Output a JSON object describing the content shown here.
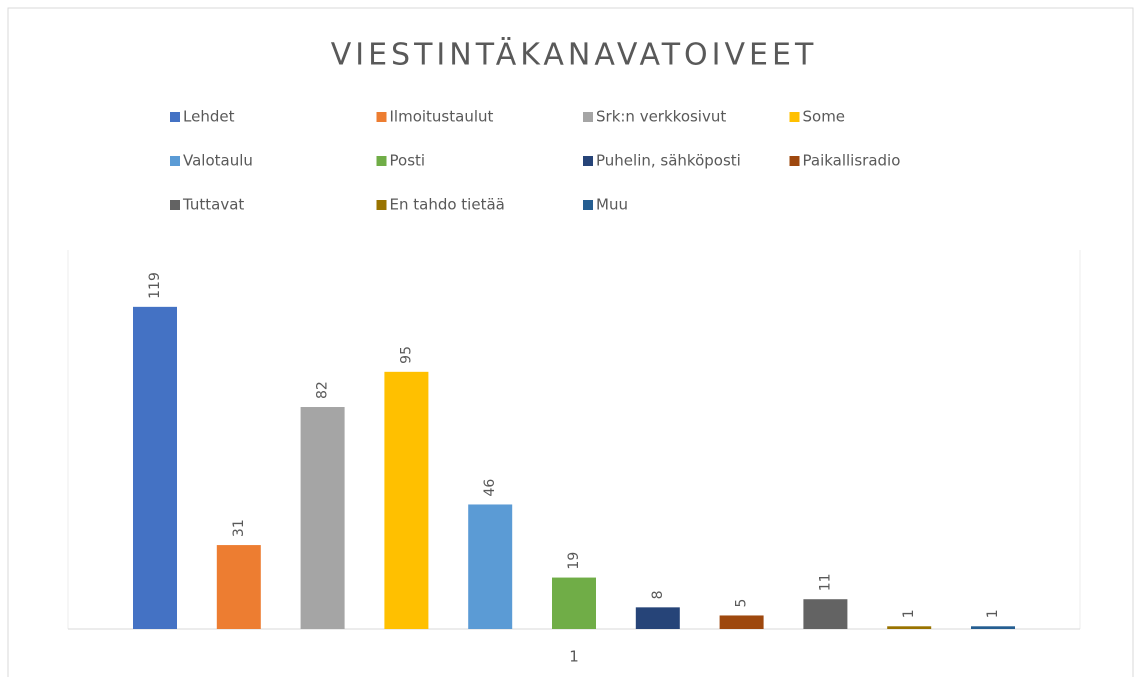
{
  "chart_data": {
    "type": "bar",
    "title": "VIESTINTÄKANAVATOIVEET",
    "categories": [
      "1"
    ],
    "series": [
      {
        "name": "Lehdet",
        "color": "#4472c4",
        "values": [
          119
        ]
      },
      {
        "name": "Ilmoitustaulut",
        "color": "#ed7d31",
        "values": [
          31
        ]
      },
      {
        "name": "Srk:n verkkosivut",
        "color": "#a5a5a5",
        "values": [
          82
        ]
      },
      {
        "name": "Some",
        "color": "#ffc000",
        "values": [
          95
        ]
      },
      {
        "name": "Valotaulu",
        "color": "#5b9bd5",
        "values": [
          46
        ]
      },
      {
        "name": "Posti",
        "color": "#70ad47",
        "values": [
          19
        ]
      },
      {
        "name": "Puhelin, sähköposti",
        "color": "#264478",
        "values": [
          8
        ]
      },
      {
        "name": "Paikallisradio",
        "color": "#9e480e",
        "values": [
          5
        ]
      },
      {
        "name": "Tuttavat",
        "color": "#636363",
        "values": [
          11
        ]
      },
      {
        "name": "En tahdo tietää",
        "color": "#997300",
        "values": [
          1
        ]
      },
      {
        "name": "Muu",
        "color": "#255e91",
        "values": [
          1
        ]
      }
    ],
    "ylim": [
      0,
      140
    ],
    "legend": "top",
    "data_labels": true
  }
}
